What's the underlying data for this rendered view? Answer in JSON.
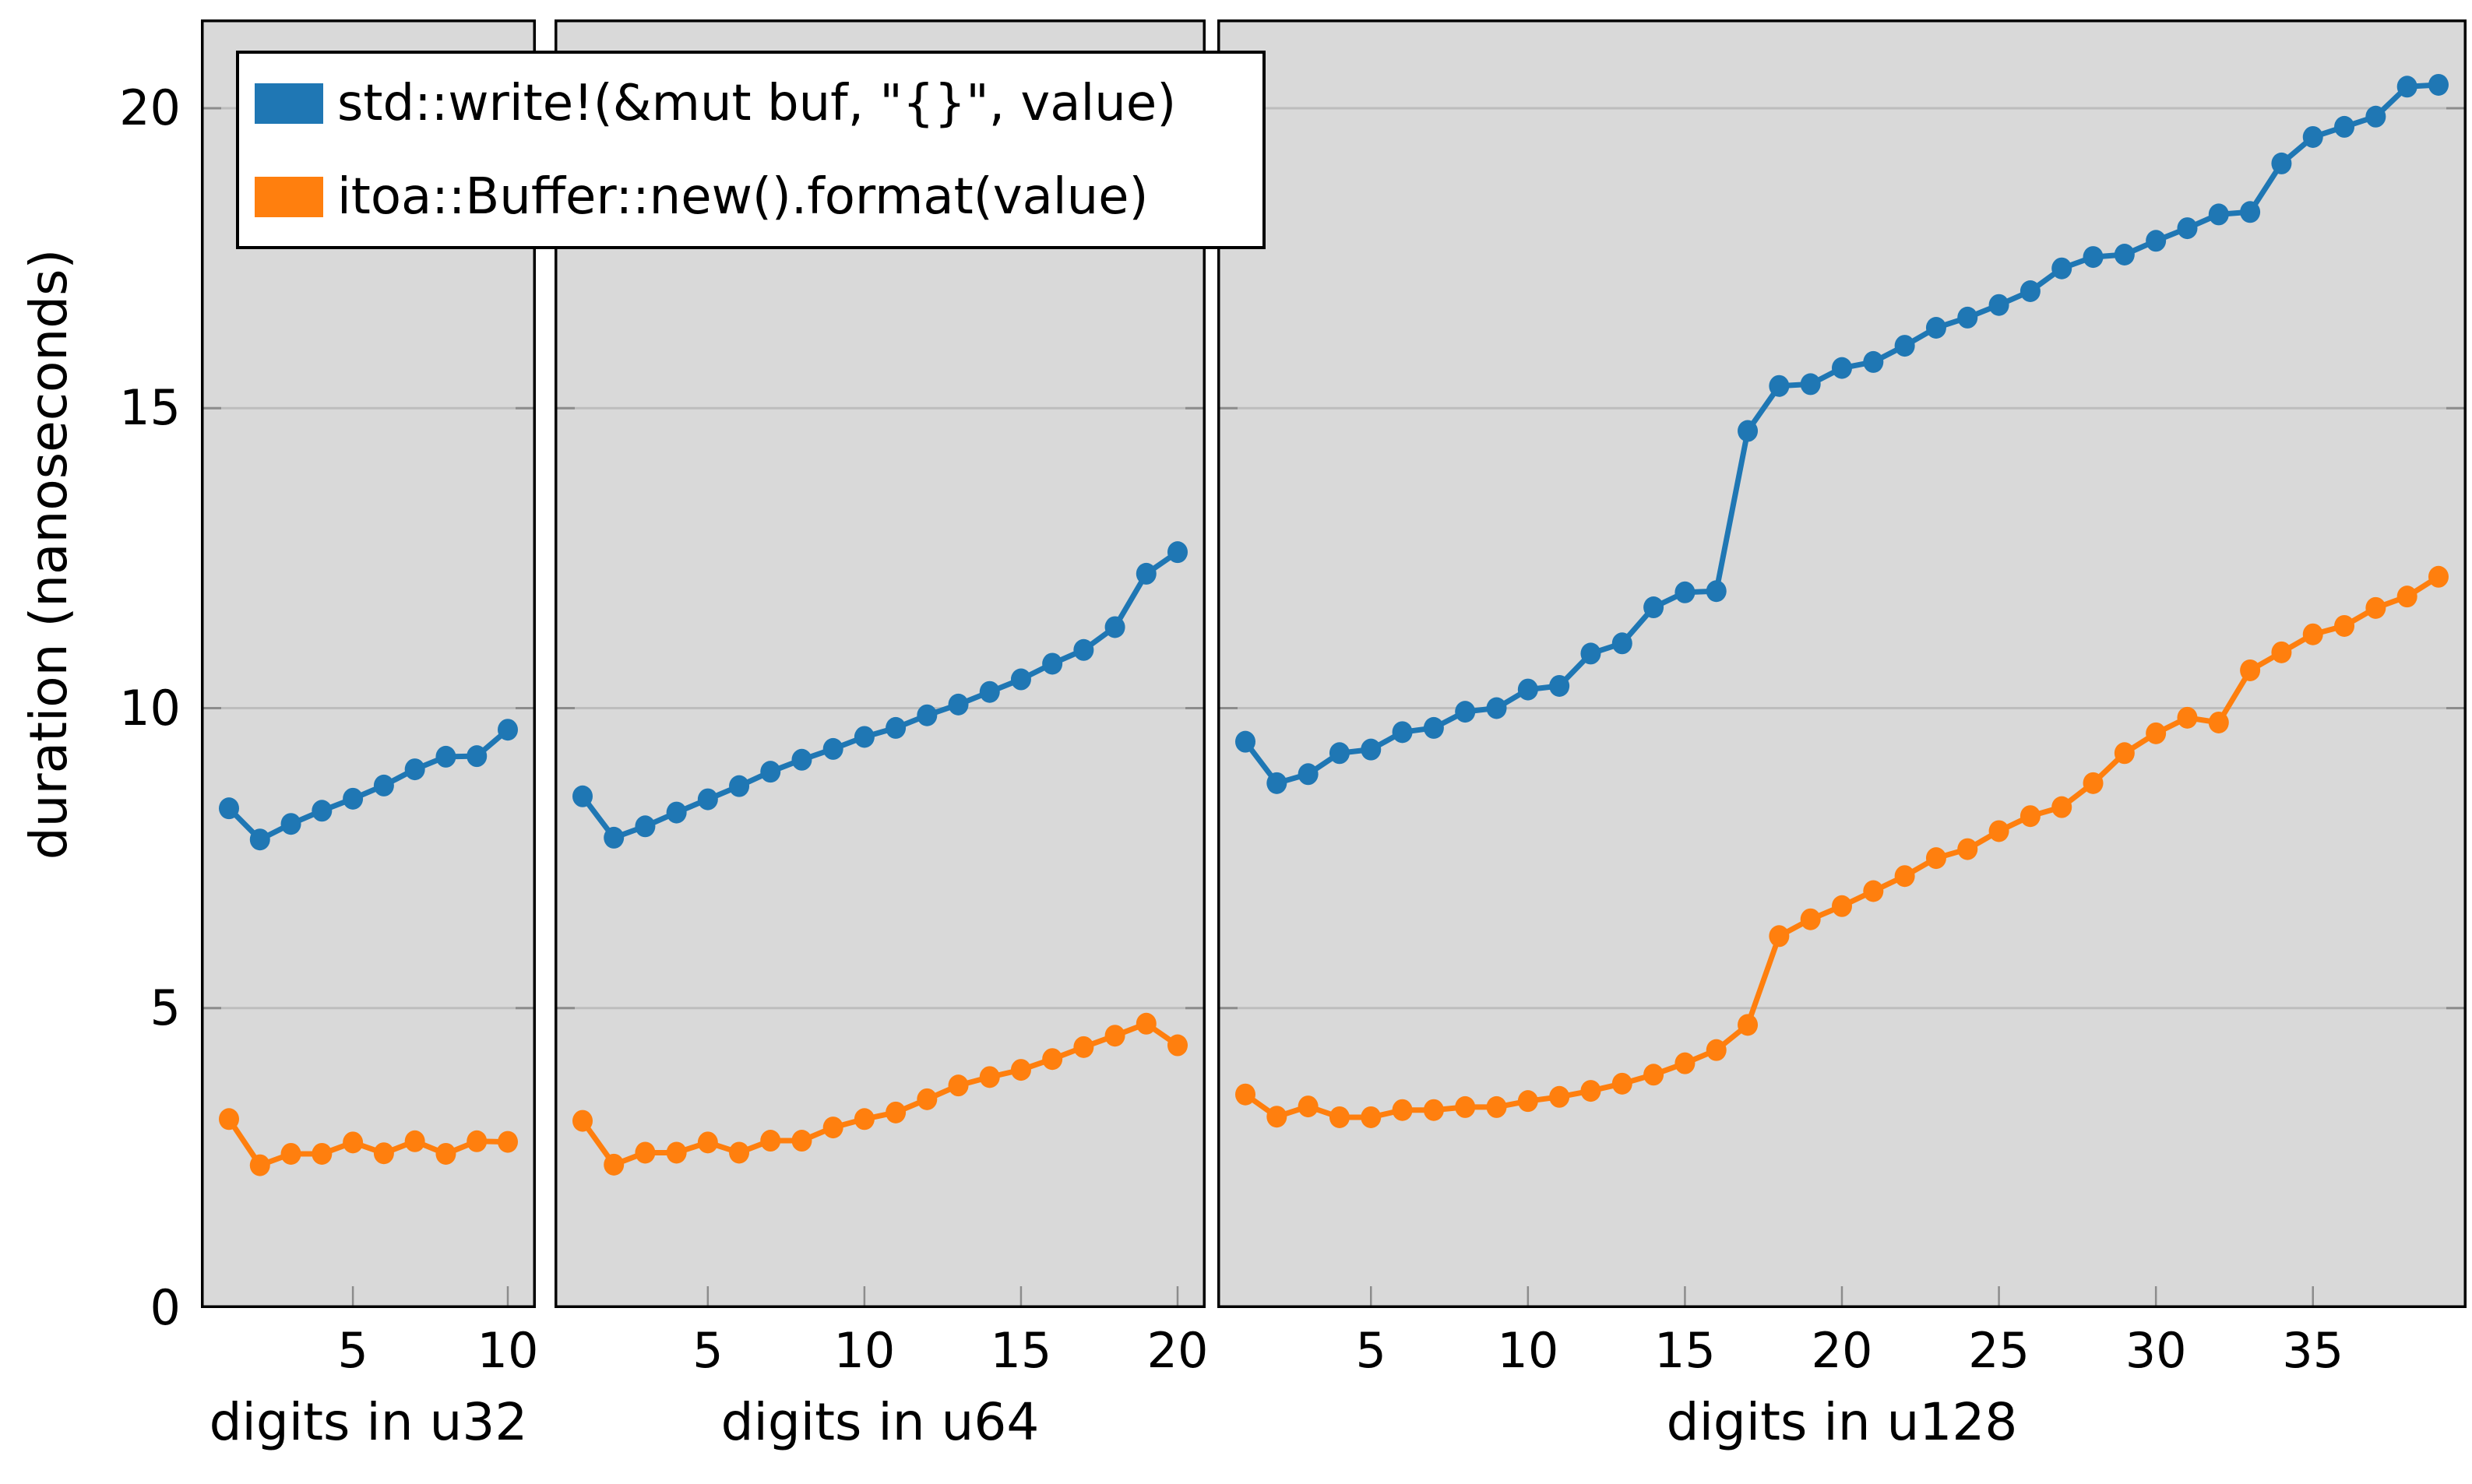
{
  "ylabel": "duration (nanoseconds)",
  "yticks": [
    0,
    5,
    10,
    15,
    20
  ],
  "colors": {
    "std_blue": "#1f77b4",
    "itoa_orange": "#ff7f0e",
    "panel_bg": "#d9d9d9",
    "gridline": "#bdbdbd",
    "tick": "#8c8c8c",
    "frame": "#000000"
  },
  "legend": [
    {
      "label": "std::write!(&mut buf, \"{}\", value)",
      "color": "#1f77b4"
    },
    {
      "label": "itoa::Buffer::new().format(value)",
      "color": "#ff7f0e"
    }
  ],
  "chart_data": [
    {
      "type": "line",
      "xlabel": "digits in u32",
      "ylabel": "duration (nanoseconds)",
      "x": [
        1,
        2,
        3,
        4,
        5,
        6,
        7,
        8,
        9,
        10
      ],
      "xticks": [
        5,
        10
      ],
      "ylim": [
        0,
        21.5
      ],
      "grid": true,
      "series": [
        {
          "name": "std::write!(&mut buf, \"{}\", value)",
          "color": "#1f77b4",
          "values": [
            8.33,
            7.81,
            8.07,
            8.29,
            8.49,
            8.71,
            8.98,
            9.19,
            9.2,
            9.64
          ]
        },
        {
          "name": "itoa::Buffer::new().format(value)",
          "color": "#ff7f0e",
          "values": [
            3.15,
            2.38,
            2.57,
            2.57,
            2.76,
            2.58,
            2.78,
            2.57,
            2.78,
            2.77
          ]
        }
      ]
    },
    {
      "type": "line",
      "xlabel": "digits in u64",
      "ylabel": "duration (nanoseconds)",
      "x": [
        1,
        2,
        3,
        4,
        5,
        6,
        7,
        8,
        9,
        10,
        11,
        12,
        13,
        14,
        15,
        16,
        17,
        18,
        19,
        20
      ],
      "xticks": [
        5,
        10,
        15,
        20
      ],
      "ylim": [
        0,
        21.5
      ],
      "grid": true,
      "series": [
        {
          "name": "std::write!(&mut buf, \"{}\", value)",
          "color": "#1f77b4",
          "values": [
            8.53,
            7.84,
            8.03,
            8.26,
            8.48,
            8.7,
            8.94,
            9.14,
            9.32,
            9.52,
            9.67,
            9.88,
            10.06,
            10.27,
            10.48,
            10.74,
            10.97,
            11.35,
            12.24,
            12.6
          ]
        },
        {
          "name": "itoa::Buffer::new().format(value)",
          "color": "#ff7f0e",
          "values": [
            3.12,
            2.39,
            2.59,
            2.59,
            2.76,
            2.59,
            2.79,
            2.79,
            3.01,
            3.15,
            3.26,
            3.48,
            3.71,
            3.85,
            3.97,
            4.15,
            4.35,
            4.54,
            4.74,
            4.38
          ]
        }
      ]
    },
    {
      "type": "line",
      "xlabel": "digits in u128",
      "ylabel": "duration (nanoseconds)",
      "x": [
        1,
        2,
        3,
        4,
        5,
        6,
        7,
        8,
        9,
        10,
        11,
        12,
        13,
        14,
        15,
        16,
        17,
        18,
        19,
        20,
        21,
        22,
        23,
        24,
        25,
        26,
        27,
        28,
        29,
        30,
        31,
        32,
        33,
        34,
        35,
        36,
        37,
        38,
        39
      ],
      "xticks": [
        5,
        10,
        15,
        20,
        25,
        30,
        35
      ],
      "ylim": [
        0,
        21.5
      ],
      "grid": true,
      "series": [
        {
          "name": "std::write!(&mut buf, \"{}\", value)",
          "color": "#1f77b4",
          "values": [
            9.44,
            8.75,
            8.9,
            9.25,
            9.31,
            9.6,
            9.67,
            9.94,
            10.0,
            10.31,
            10.37,
            10.91,
            11.08,
            11.68,
            11.93,
            11.95,
            14.62,
            15.37,
            15.4,
            15.67,
            15.77,
            16.04,
            16.34,
            16.51,
            16.72,
            16.95,
            17.33,
            17.52,
            17.56,
            17.79,
            18.0,
            18.23,
            18.27,
            19.08,
            19.52,
            19.69,
            19.86,
            20.36,
            20.39
          ]
        },
        {
          "name": "itoa::Buffer::new().format(value)",
          "color": "#ff7f0e",
          "values": [
            3.56,
            3.19,
            3.36,
            3.18,
            3.18,
            3.3,
            3.3,
            3.35,
            3.35,
            3.45,
            3.52,
            3.62,
            3.74,
            3.89,
            4.08,
            4.3,
            4.72,
            6.2,
            6.48,
            6.7,
            6.95,
            7.2,
            7.5,
            7.65,
            7.95,
            8.2,
            8.35,
            8.75,
            9.25,
            9.58,
            9.84,
            9.76,
            10.63,
            10.93,
            11.23,
            11.37,
            11.67,
            11.86,
            12.19
          ]
        }
      ]
    }
  ]
}
